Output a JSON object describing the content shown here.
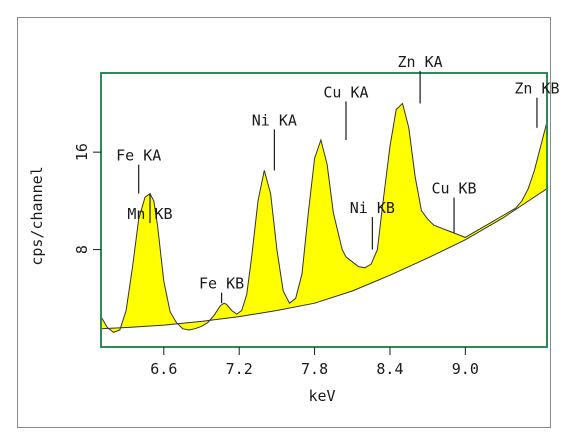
{
  "chart_data": {
    "type": "area",
    "title": "",
    "xlabel": "keV",
    "ylabel": "cps/channel",
    "xlim": [
      6.1,
      9.65
    ],
    "ylim": [
      0,
      22.5
    ],
    "xticks": [
      6.6,
      7.2,
      7.8,
      8.4,
      9.0
    ],
    "xtick_labels": [
      "6.6",
      "7.2",
      "7.8",
      "8.4",
      "9.0"
    ],
    "yticks": [
      8,
      16
    ],
    "ytick_labels": [
      "8",
      "16"
    ],
    "grid": false,
    "colors": {
      "fill": "#ffff00",
      "frame": "#2e8b57",
      "curve": "#333333",
      "text": "#1a1a1a"
    },
    "spectrum": {
      "x": [
        6.1,
        6.15,
        6.2,
        6.25,
        6.3,
        6.35,
        6.4,
        6.45,
        6.49,
        6.52,
        6.55,
        6.6,
        6.65,
        6.7,
        6.75,
        6.8,
        6.85,
        6.9,
        6.95,
        7.0,
        7.05,
        7.08,
        7.1,
        7.14,
        7.18,
        7.22,
        7.26,
        7.3,
        7.35,
        7.4,
        7.45,
        7.5,
        7.55,
        7.6,
        7.65,
        7.7,
        7.75,
        7.8,
        7.85,
        7.9,
        7.95,
        8.02,
        8.05,
        8.1,
        8.15,
        8.2,
        8.25,
        8.3,
        8.34,
        8.4,
        8.45,
        8.5,
        8.55,
        8.6,
        8.65,
        8.7,
        8.75,
        8.8,
        8.85,
        8.9,
        8.95,
        9.0,
        9.05,
        9.1,
        9.2,
        9.3,
        9.4,
        9.45,
        9.5,
        9.55,
        9.6,
        9.65
      ],
      "y": [
        2.5,
        1.6,
        1.2,
        1.4,
        3.0,
        6.5,
        10.5,
        12.3,
        12.6,
        12.0,
        10.0,
        5.4,
        2.9,
        2.0,
        1.5,
        1.4,
        1.5,
        1.7,
        2.0,
        2.6,
        3.4,
        3.6,
        3.5,
        3.0,
        2.7,
        3.0,
        4.3,
        7.5,
        12.0,
        14.5,
        12.6,
        8.0,
        4.6,
        3.6,
        4.0,
        6.0,
        11.0,
        15.5,
        17.0,
        15.0,
        11.0,
        8.0,
        7.4,
        7.0,
        6.6,
        6.5,
        6.8,
        8.0,
        11.5,
        16.5,
        19.5,
        20.0,
        18.0,
        14.0,
        11.2,
        10.5,
        10.0,
        9.8,
        9.6,
        9.4,
        9.2,
        9.0,
        9.3,
        9.6,
        10.2,
        10.8,
        11.4,
        12.0,
        13.0,
        14.5,
        16.5,
        18.5
      ]
    },
    "baseline": {
      "x": [
        6.1,
        6.3,
        6.6,
        6.9,
        7.2,
        7.5,
        7.8,
        8.1,
        8.4,
        8.7,
        9.0,
        9.3,
        9.65
      ],
      "y": [
        1.5,
        1.6,
        1.8,
        2.1,
        2.5,
        3.0,
        3.6,
        4.6,
        5.9,
        7.3,
        8.8,
        10.6,
        13.0
      ]
    },
    "peaks": [
      {
        "label": "Mn KB",
        "x": 6.49,
        "y": 10.5,
        "line_to": 12.6
      },
      {
        "label": "Fe KA",
        "x": 6.4,
        "y": 15.3,
        "line_to": 12.6
      },
      {
        "label": "Fe KB",
        "x": 7.06,
        "y": 4.8,
        "line_to": 3.6
      },
      {
        "label": "Ni KA",
        "x": 7.48,
        "y": 18.2,
        "line_to": 14.5
      },
      {
        "label": "Cu KA",
        "x": 8.05,
        "y": 20.5,
        "line_to": 17.0
      },
      {
        "label": "Ni KB",
        "x": 8.26,
        "y": 11.0,
        "line_to": 8.0
      },
      {
        "label": "Zn KA",
        "x": 8.64,
        "y": 23.0,
        "line_to": 20.0
      },
      {
        "label": "Cu KB",
        "x": 8.91,
        "y": 12.6,
        "line_to": 9.4
      },
      {
        "label": "Zn KB",
        "x": 9.57,
        "y": 20.8,
        "line_to": 18.0
      }
    ]
  }
}
